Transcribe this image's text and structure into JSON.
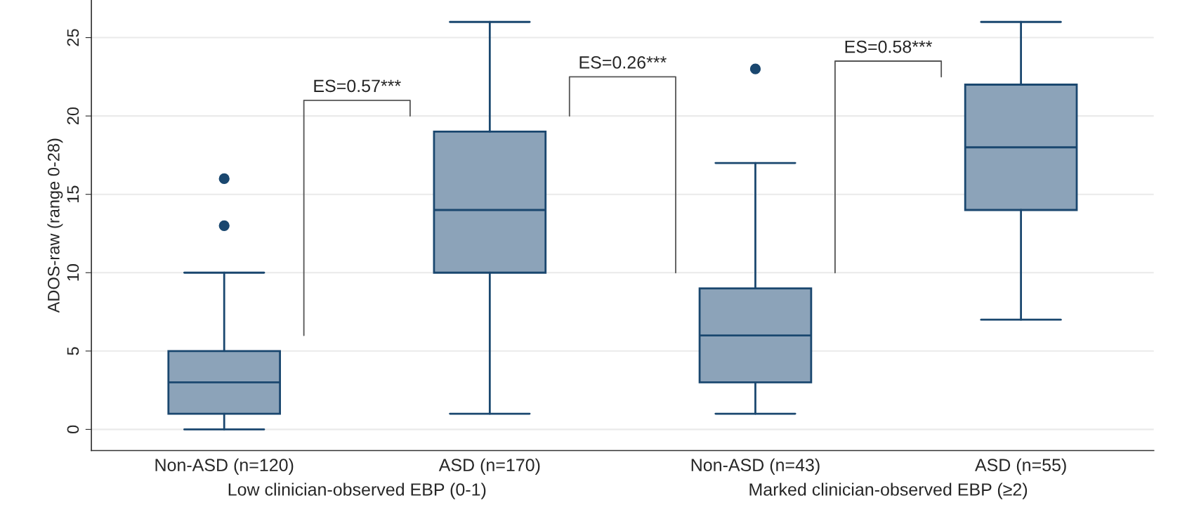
{
  "chart_data": {
    "type": "box",
    "ylabel": "ADOS-raw (range 0-28)",
    "categories": [
      "Non-ASD (n=120)",
      "ASD (n=170)",
      "Non-ASD (n=43)",
      "ASD (n=55)"
    ],
    "boxes": [
      {
        "low": 0,
        "q1": 1,
        "median": 3,
        "q3": 5,
        "high": 10,
        "outliers": [
          13,
          16
        ]
      },
      {
        "low": 1,
        "q1": 10,
        "median": 14,
        "q3": 19,
        "high": 26
      },
      {
        "low": 1,
        "q1": 3,
        "median": 6,
        "q3": 9,
        "high": 17,
        "outliers": [
          23
        ]
      },
      {
        "low": 7,
        "q1": 14,
        "median": 18,
        "q3": 22,
        "high": 26
      }
    ],
    "color": "#8ca3b9",
    "ylim": [
      -1.35,
      27.4
    ],
    "yticks": [
      0,
      5,
      10,
      15,
      20,
      25
    ],
    "grid": "y",
    "annotations": [
      "ES=0.57***",
      "ES=0.26***",
      "ES=0.58***",
      "Low clinician-observed EBP (0-1)",
      "Marked clinician-observed EBP (≥2)"
    ]
  }
}
